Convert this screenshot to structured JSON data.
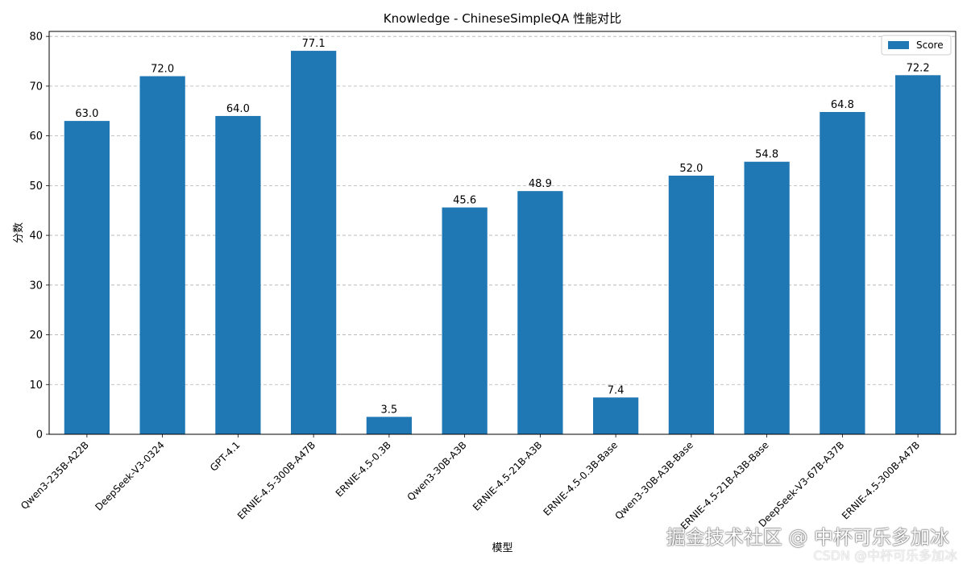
{
  "chart_data": {
    "type": "bar",
    "title": "Knowledge - ChineseSimpleQA 性能对比",
    "xlabel": "模型",
    "ylabel": "分数",
    "categories": [
      "Qwen3-235B-A22B",
      "DeepSeek-V3-0324",
      "GPT-4.1",
      "ERNIE-4.5-300B-A47B",
      "ERNIE-4.5-0.3B",
      "Qwen3-30B-A3B",
      "ERNIE-4.5-21B-A3B",
      "ERNIE-4.5-0.3B-Base",
      "Qwen3-30B-A3B-Base",
      "ERNIE-4.5-21B-A3B-Base",
      "DeepSeek-V3-67B-A37B",
      "ERNIE-4.5-300B-A47B"
    ],
    "series": [
      {
        "name": "Score",
        "values": [
          63.0,
          72.0,
          64.0,
          77.1,
          3.5,
          45.6,
          48.9,
          7.4,
          52.0,
          54.8,
          64.8,
          72.2
        ]
      }
    ],
    "value_labels": [
      "63.0",
      "72.0",
      "64.0",
      "77.1",
      "3.5",
      "45.6",
      "48.9",
      "7.4",
      "52.0",
      "54.8",
      "64.8",
      "72.2"
    ],
    "ylim": [
      0,
      81
    ],
    "yticks": [
      0,
      10,
      20,
      30,
      40,
      50,
      60,
      70,
      80
    ],
    "grid": "y-dashed",
    "legend_position": "top-right",
    "bar_color": "#1f77b4"
  },
  "watermark": {
    "main": "掘金技术社区 @ 中杯可乐多加冰",
    "sub": "CSDN @中杯可乐多加冰"
  }
}
